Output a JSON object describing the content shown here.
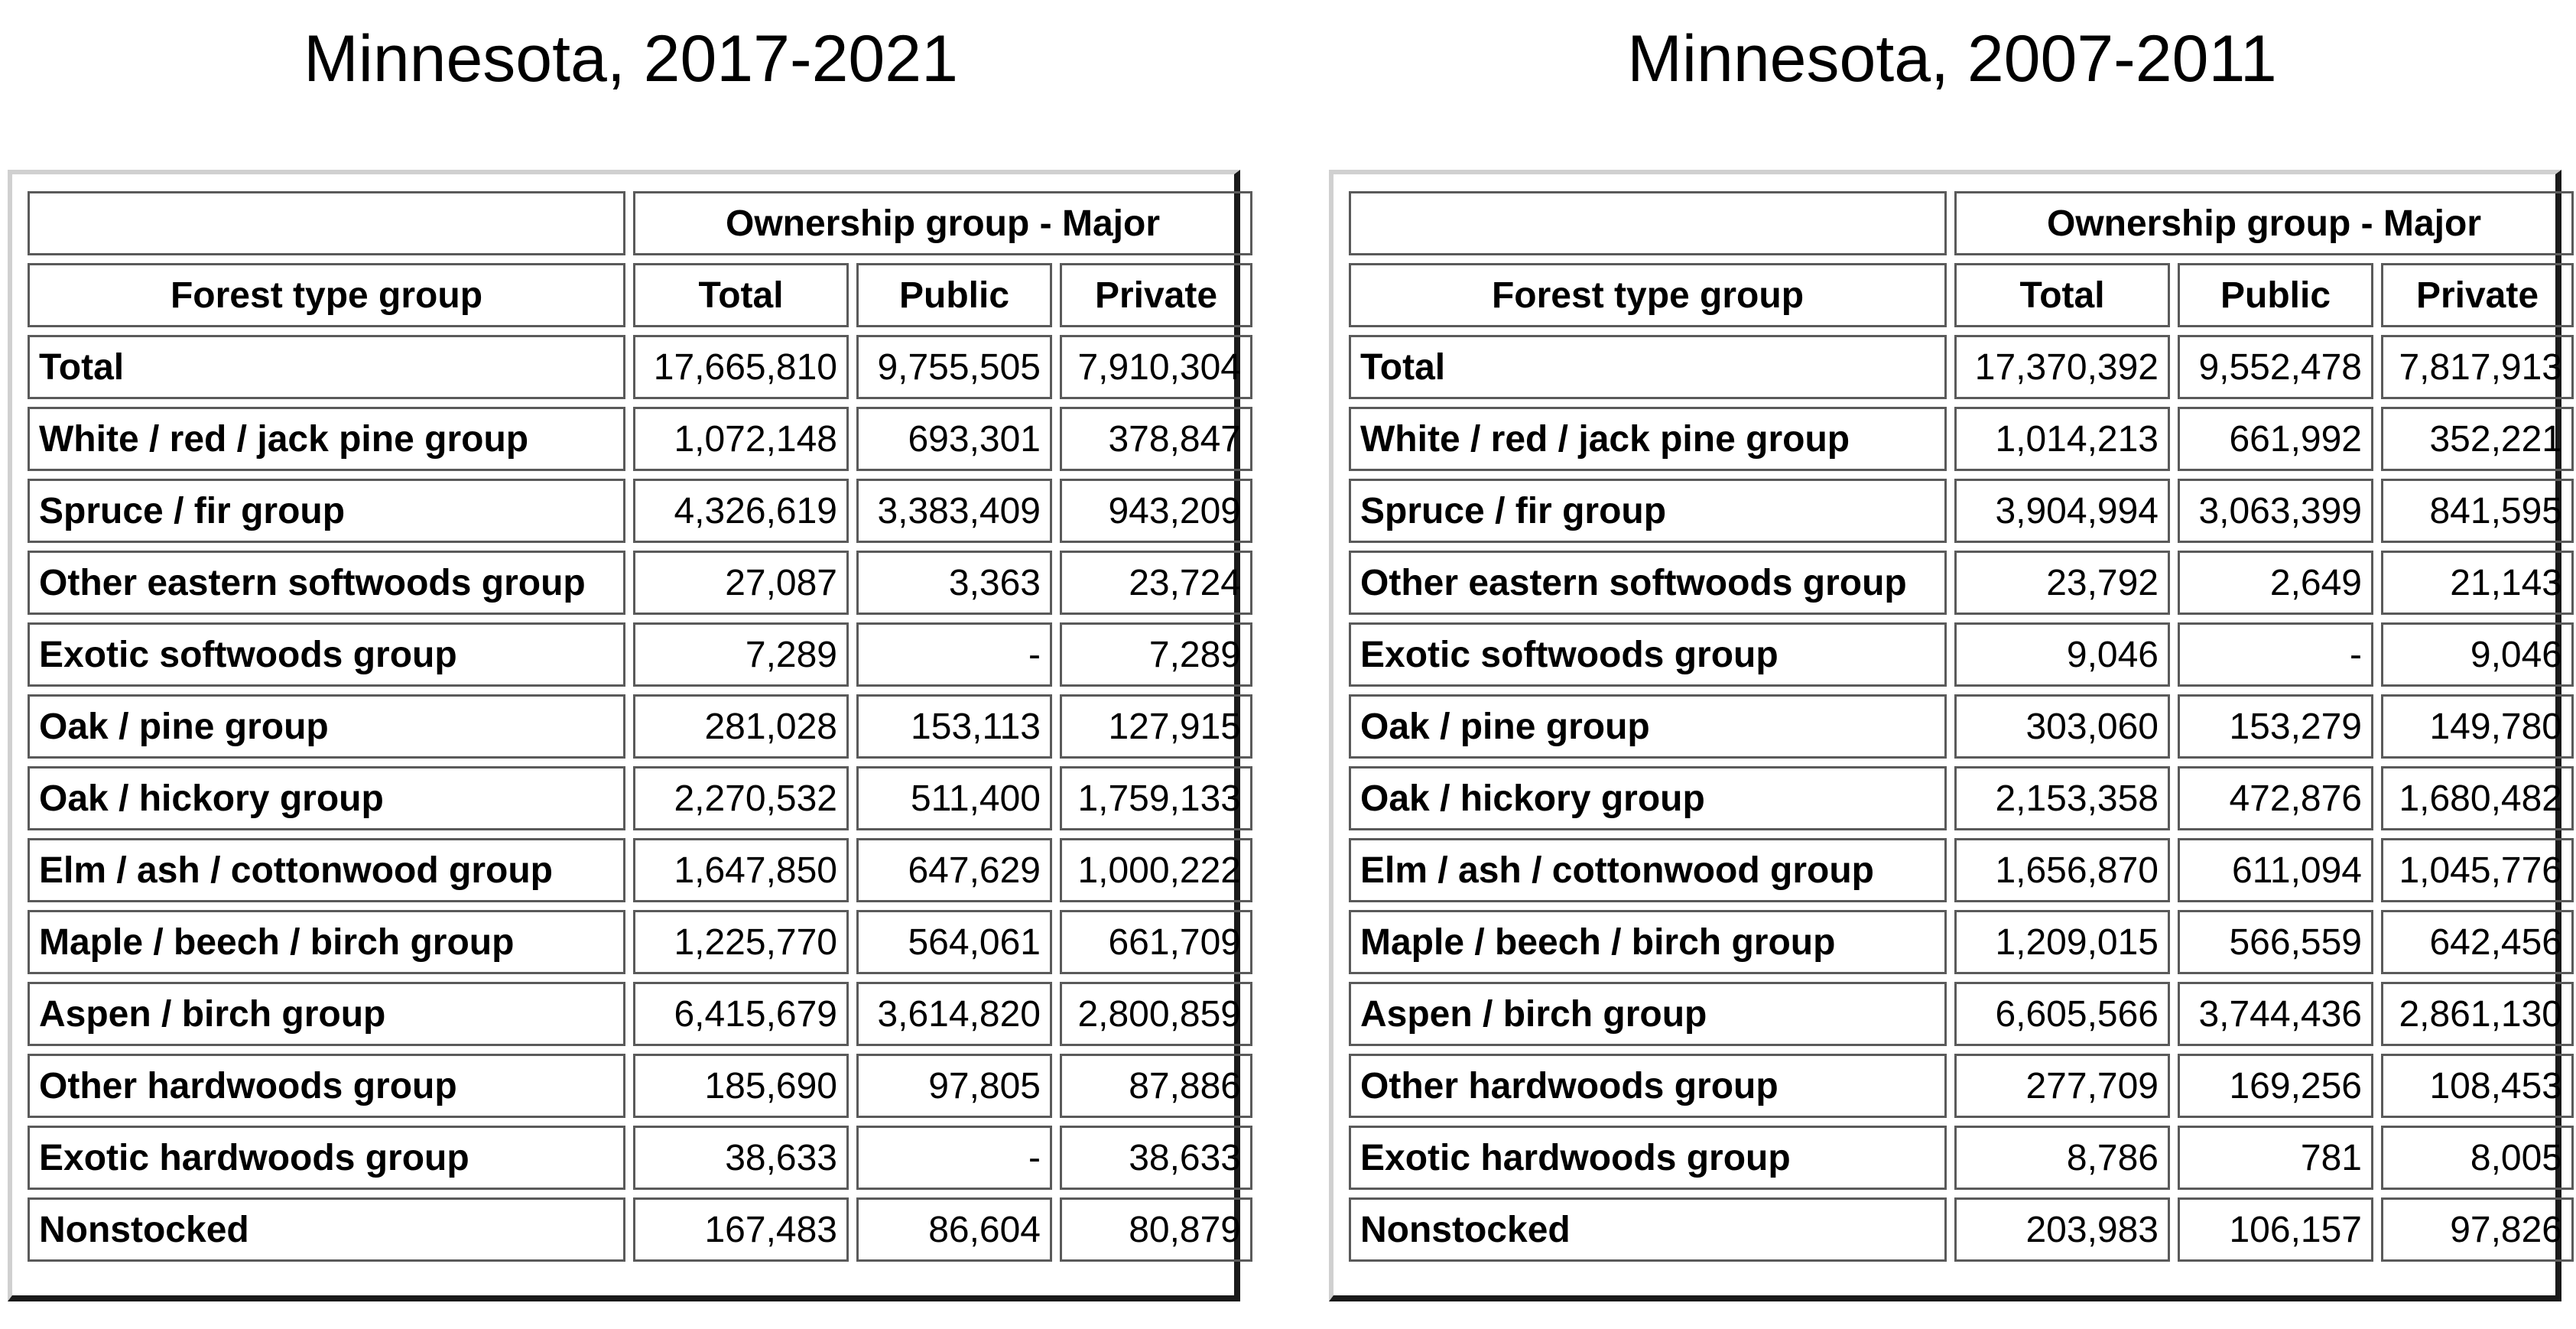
{
  "tables": [
    {
      "title": "Minnesota, 2017-2021",
      "group_header": "Ownership group - Major",
      "columns": [
        "Forest type group",
        "Total",
        "Public",
        "Private"
      ],
      "rows": [
        [
          "Total",
          "17,665,810",
          "9,755,505",
          "7,910,304"
        ],
        [
          "White / red / jack pine group",
          "1,072,148",
          "693,301",
          "378,847"
        ],
        [
          "Spruce / fir group",
          "4,326,619",
          "3,383,409",
          "943,209"
        ],
        [
          "Other eastern softwoods group",
          "27,087",
          "3,363",
          "23,724"
        ],
        [
          "Exotic softwoods group",
          "7,289",
          "-",
          "7,289"
        ],
        [
          "Oak / pine group",
          "281,028",
          "153,113",
          "127,915"
        ],
        [
          "Oak / hickory group",
          "2,270,532",
          "511,400",
          "1,759,133"
        ],
        [
          "Elm / ash / cottonwood group",
          "1,647,850",
          "647,629",
          "1,000,222"
        ],
        [
          "Maple / beech / birch group",
          "1,225,770",
          "564,061",
          "661,709"
        ],
        [
          "Aspen / birch group",
          "6,415,679",
          "3,614,820",
          "2,800,859"
        ],
        [
          "Other hardwoods group",
          "185,690",
          "97,805",
          "87,886"
        ],
        [
          "Exotic hardwoods group",
          "38,633",
          "-",
          "38,633"
        ],
        [
          "Nonstocked",
          "167,483",
          "86,604",
          "80,879"
        ]
      ]
    },
    {
      "title": "Minnesota, 2007-2011",
      "group_header": "Ownership group - Major",
      "columns": [
        "Forest type group",
        "Total",
        "Public",
        "Private"
      ],
      "rows": [
        [
          "Total",
          "17,370,392",
          "9,552,478",
          "7,817,913"
        ],
        [
          "White / red / jack pine group",
          "1,014,213",
          "661,992",
          "352,221"
        ],
        [
          "Spruce / fir group",
          "3,904,994",
          "3,063,399",
          "841,595"
        ],
        [
          "Other eastern softwoods group",
          "23,792",
          "2,649",
          "21,143"
        ],
        [
          "Exotic softwoods group",
          "9,046",
          "-",
          "9,046"
        ],
        [
          "Oak / pine group",
          "303,060",
          "153,279",
          "149,780"
        ],
        [
          "Oak / hickory group",
          "2,153,358",
          "472,876",
          "1,680,482"
        ],
        [
          "Elm / ash / cottonwood group",
          "1,656,870",
          "611,094",
          "1,045,776"
        ],
        [
          "Maple / beech / birch group",
          "1,209,015",
          "566,559",
          "642,456"
        ],
        [
          "Aspen / birch group",
          "6,605,566",
          "3,744,436",
          "2,861,130"
        ],
        [
          "Other hardwoods group",
          "277,709",
          "169,256",
          "108,453"
        ],
        [
          "Exotic hardwoods group",
          "8,786",
          "781",
          "8,005"
        ],
        [
          "Nonstocked",
          "203,983",
          "106,157",
          "97,826"
        ]
      ]
    }
  ]
}
